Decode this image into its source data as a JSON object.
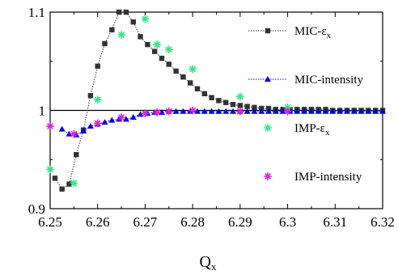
{
  "chart_data": {
    "type": "scatter",
    "title": "",
    "xlabel": "Q",
    "xlabel_sub": "x",
    "ylabel": "",
    "xlim": [
      6.25,
      6.32
    ],
    "ylim": [
      0.9,
      1.1
    ],
    "x_ticks": [
      6.25,
      6.26,
      6.27,
      6.28,
      6.29,
      6.3,
      6.31,
      6.32
    ],
    "x_tick_labels": [
      "6.25",
      "6.26",
      "6.27",
      "6.28",
      "6.29",
      "6.3",
      "6.31",
      "6.32"
    ],
    "y_ticks": [
      0.9,
      1.0,
      1.1
    ],
    "y_tick_labels": [
      "0.9",
      "1",
      "1.1"
    ],
    "reference_line_y": 1.0,
    "legend_position": "right",
    "series": [
      {
        "name": "MIC-ε",
        "name_sub": "x",
        "style": "line+markers",
        "marker": "square",
        "color": "#333333",
        "line_dash": "dotted",
        "x": [
          6.251,
          6.2525,
          6.254,
          6.2555,
          6.257,
          6.2585,
          6.26,
          6.2615,
          6.263,
          6.2645,
          6.266,
          6.2675,
          6.269,
          6.2705,
          6.272,
          6.2735,
          6.275,
          6.2765,
          6.278,
          6.2795,
          6.281,
          6.2825,
          6.284,
          6.2855,
          6.287,
          6.2885,
          6.29,
          6.2915,
          6.293,
          6.2945,
          6.296,
          6.2975,
          6.299,
          6.3005,
          6.302,
          6.3035,
          6.305,
          6.3065,
          6.308,
          6.3095,
          6.311,
          6.3125,
          6.314,
          6.3155,
          6.317,
          6.3185,
          6.32
        ],
        "y": [
          0.931,
          0.92,
          0.925,
          0.955,
          0.98,
          1.015,
          1.045,
          1.068,
          1.082,
          1.1,
          1.1,
          1.09,
          1.075,
          1.067,
          1.06,
          1.053,
          1.047,
          1.04,
          1.034,
          1.028,
          1.022,
          1.017,
          1.013,
          1.01,
          1.008,
          1.006,
          1.005,
          1.004,
          1.003,
          1.002,
          1.002,
          1.001,
          1.001,
          1.001,
          1.001,
          1.001,
          1.001,
          1.001,
          1.001,
          1.0,
          1.0,
          1.0,
          1.0,
          1.0,
          1.0,
          1.0,
          1.0
        ]
      },
      {
        "name": "MIC-intensity",
        "style": "line+markers",
        "marker": "triangle",
        "color": "#0000ee",
        "line_dash": "dotted",
        "x": [
          6.2525,
          6.254,
          6.2555,
          6.257,
          6.2585,
          6.26,
          6.2615,
          6.263,
          6.2645,
          6.266,
          6.2675,
          6.269,
          6.2705,
          6.272,
          6.2735,
          6.275,
          6.2765,
          6.278,
          6.2795,
          6.281,
          6.2825,
          6.284,
          6.2855,
          6.287,
          6.2885,
          6.29,
          6.2915,
          6.293,
          6.2945,
          6.296,
          6.2975,
          6.299,
          6.3005,
          6.302,
          6.3035,
          6.305,
          6.3065,
          6.308,
          6.3095,
          6.311,
          6.3125,
          6.314,
          6.3155,
          6.317,
          6.3185,
          6.32
        ],
        "y": [
          0.981,
          0.976,
          0.975,
          0.979,
          0.984,
          0.986,
          0.988,
          0.99,
          0.991,
          0.991,
          0.993,
          0.996,
          0.997,
          0.998,
          0.998,
          0.999,
          0.999,
          0.999,
          0.999,
          0.999,
          0.999,
          0.999,
          0.999,
          0.999,
          0.999,
          0.999,
          0.999,
          0.999,
          0.999,
          0.999,
          0.999,
          0.999,
          0.999,
          0.999,
          0.999,
          0.999,
          0.999,
          0.999,
          0.999,
          0.999,
          0.999,
          0.999,
          0.999,
          0.999,
          0.999,
          0.999
        ]
      },
      {
        "name": "IMP-ε",
        "name_sub": "x",
        "style": "markers",
        "marker": "asterisk",
        "color": "#2ee88a",
        "x": [
          6.25,
          6.255,
          6.26,
          6.265,
          6.27,
          6.2725,
          6.275,
          6.28,
          6.29,
          6.3
        ],
        "y": [
          0.94,
          0.926,
          1.011,
          1.077,
          1.093,
          1.067,
          1.062,
          1.042,
          1.014,
          1.003
        ]
      },
      {
        "name": "IMP-intensity",
        "style": "markers",
        "marker": "asterisk",
        "color": "#dd22dd",
        "x": [
          6.25,
          6.255,
          6.26,
          6.265,
          6.27,
          6.2725,
          6.275,
          6.28,
          6.29,
          6.3
        ],
        "y": [
          0.984,
          0.976,
          0.987,
          0.993,
          0.997,
          0.998,
          0.999,
          1.0,
          0.999,
          0.999
        ]
      }
    ]
  }
}
